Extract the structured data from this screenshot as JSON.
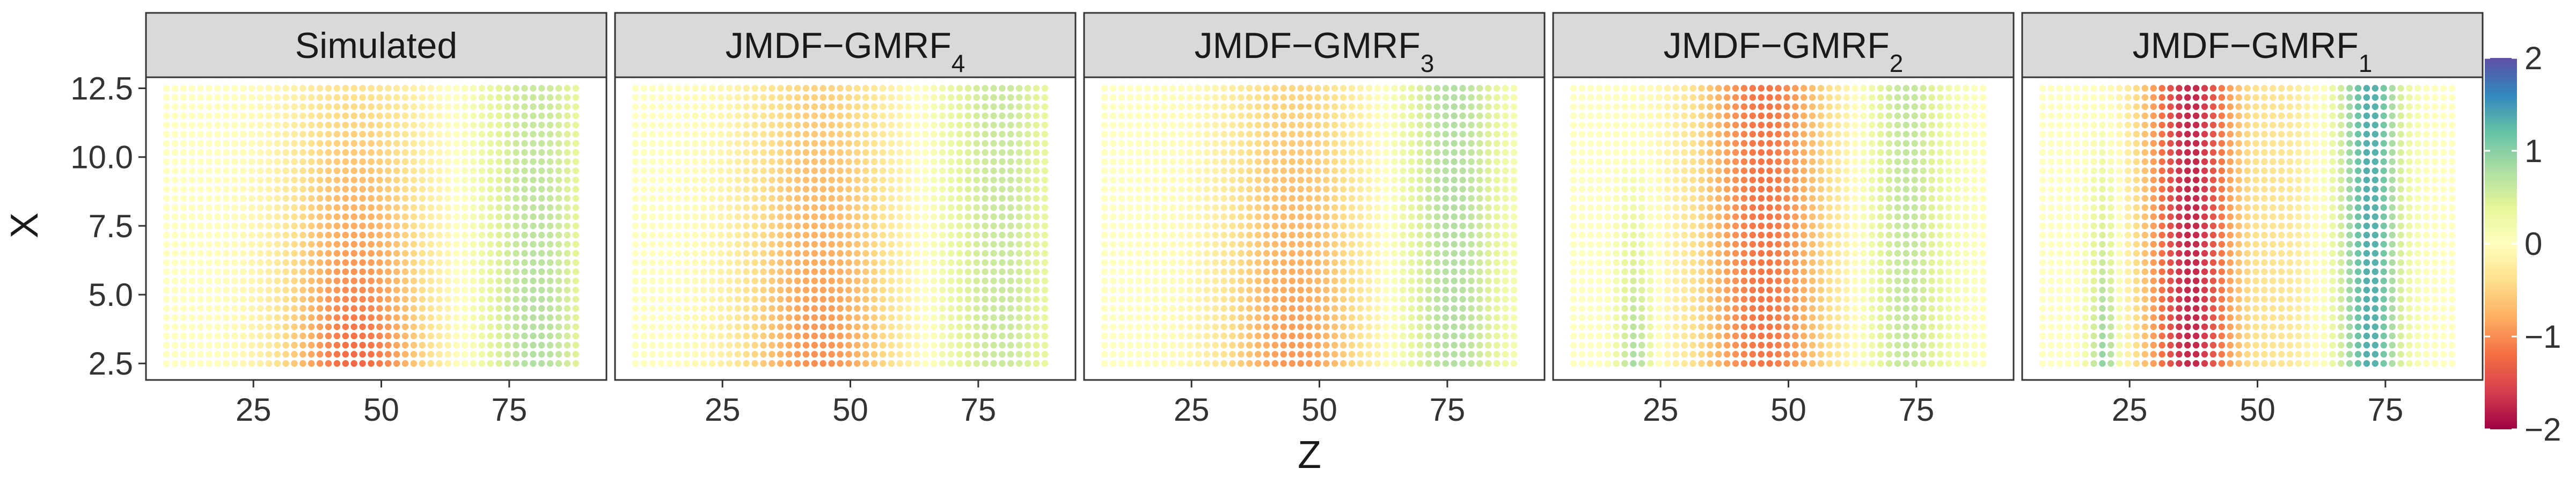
{
  "chart_data": {
    "type": "scatter",
    "subtype": "faceted-gridded-heatmap",
    "xlabel": "Z",
    "ylabel": "X",
    "xlim": [
      4,
      94
    ],
    "ylim": [
      1.9,
      12.9
    ],
    "x_ticks": [
      "25",
      "50",
      "75"
    ],
    "x_tick_values": [
      25,
      50,
      75
    ],
    "y_ticks": [
      "2.5",
      "5.0",
      "7.5",
      "10.0",
      "12.5"
    ],
    "y_tick_values": [
      2.5,
      5.0,
      7.5,
      10.0,
      12.5
    ],
    "grid": {
      "x_start": 8,
      "x_end": 88,
      "x_count": 49,
      "y_start": 2.5,
      "y_end": 12.5,
      "y_count": 31
    },
    "legend": {
      "position": "right",
      "type": "colorbar",
      "range": [
        -2,
        2
      ],
      "ticks": [
        "−2",
        "−1",
        "0",
        "1",
        "2"
      ],
      "tick_values": [
        -2,
        -1,
        0,
        1,
        2
      ],
      "palette": "Spectral",
      "colors": [
        "#9e0142",
        "#d53e4f",
        "#f46d43",
        "#fdae61",
        "#fee08b",
        "#ffffbf",
        "#e6f598",
        "#abdda4",
        "#66c2a5",
        "#3288bd",
        "#5e4fa2"
      ]
    },
    "panels": [
      {
        "label": "Simulated",
        "sub": ""
      },
      {
        "label": "JMDF−GMRF",
        "sub": "4"
      },
      {
        "label": "JMDF−GMRF",
        "sub": "3"
      },
      {
        "label": "JMDF−GMRF",
        "sub": "2"
      },
      {
        "label": "JMDF−GMRF",
        "sub": "1"
      }
    ]
  }
}
